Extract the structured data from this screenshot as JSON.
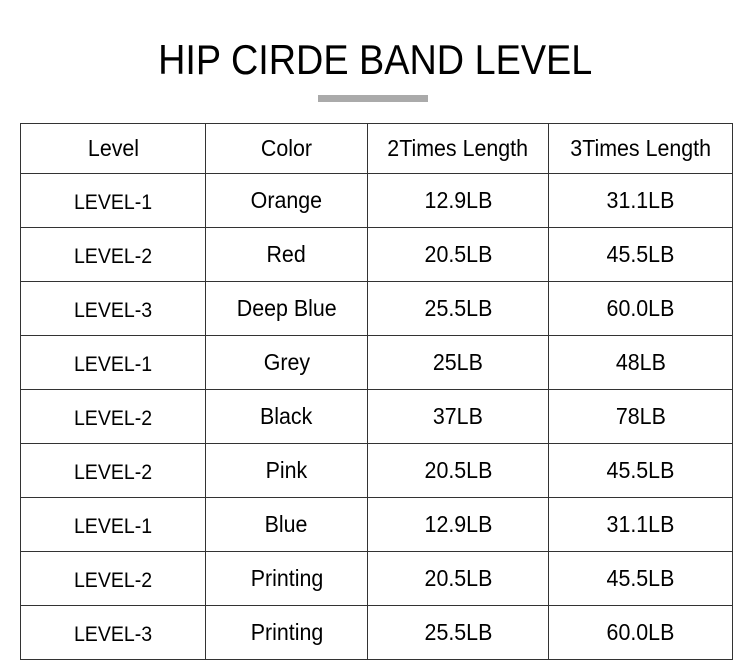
{
  "title": "HIP CIRDE BAND LEVEL",
  "colors": {
    "divider": "#aaaaaa",
    "border": "#333333"
  },
  "table": {
    "headers": [
      "Level",
      "Color",
      "2Times Length",
      "3Times Length"
    ],
    "rows": [
      [
        "LEVEL-1",
        "Orange",
        "12.9LB",
        "31.1LB"
      ],
      [
        "LEVEL-2",
        "Red",
        "20.5LB",
        "45.5LB"
      ],
      [
        "LEVEL-3",
        "Deep Blue",
        "25.5LB",
        "60.0LB"
      ],
      [
        "LEVEL-1",
        "Grey",
        "25LB",
        "48LB"
      ],
      [
        "LEVEL-2",
        "Black",
        "37LB",
        "78LB"
      ],
      [
        "LEVEL-2",
        "Pink",
        "20.5LB",
        "45.5LB"
      ],
      [
        "LEVEL-1",
        "Blue",
        "12.9LB",
        "31.1LB"
      ],
      [
        "LEVEL-2",
        "Printing",
        "20.5LB",
        "45.5LB"
      ],
      [
        "LEVEL-3",
        "Printing",
        "25.5LB",
        "60.0LB"
      ]
    ]
  }
}
